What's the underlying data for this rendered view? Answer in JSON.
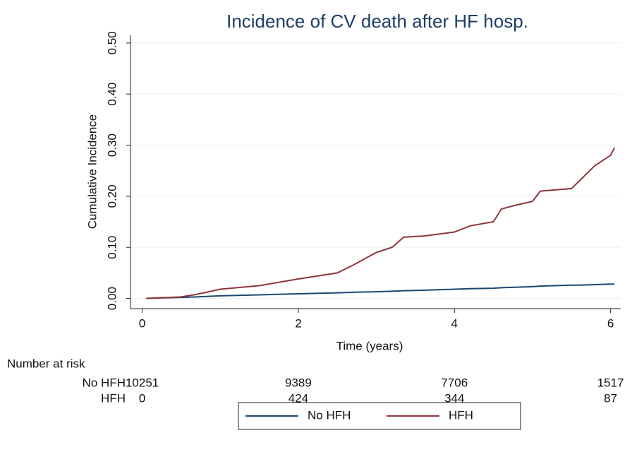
{
  "chart_data": {
    "type": "line",
    "title": "Incidence of CV death after HF hosp.",
    "xlabel": "Time (years)",
    "ylabel": "Cumulative Incidence",
    "x": [
      0.05,
      0.5,
      0.7,
      1.0,
      1.5,
      2.0,
      2.5,
      2.7,
      3.0,
      3.2,
      3.35,
      3.6,
      4.0,
      4.2,
      4.5,
      4.6,
      4.8,
      5.0,
      5.1,
      5.5,
      5.6,
      5.8,
      6.0,
      6.05
    ],
    "series": [
      {
        "name": "No HFH",
        "color": "#1a476f",
        "values": [
          0,
          0.002,
          0.003,
          0.005,
          0.007,
          0.009,
          0.011,
          0.012,
          0.013,
          0.014,
          0.015,
          0.016,
          0.018,
          0.019,
          0.02,
          0.021,
          0.022,
          0.023,
          0.024,
          0.026,
          0.026,
          0.027,
          0.028,
          0.028
        ]
      },
      {
        "name": "HFH",
        "color": "#90353b",
        "values": [
          0,
          0.003,
          0.008,
          0.018,
          0.025,
          0.038,
          0.05,
          0.065,
          0.09,
          0.1,
          0.12,
          0.122,
          0.13,
          0.142,
          0.15,
          0.175,
          0.183,
          0.19,
          0.21,
          0.215,
          0.23,
          0.26,
          0.28,
          0.295
        ]
      }
    ],
    "xlim": [
      -0.15,
      6.13
    ],
    "ylim": [
      -0.02,
      0.515
    ],
    "xticks": [
      0,
      2,
      4,
      6
    ],
    "yticks": [
      {
        "value": 0,
        "label": "0.00"
      },
      {
        "value": 0.1,
        "label": "0.10"
      },
      {
        "value": 0.2,
        "label": "0.20"
      },
      {
        "value": 0.3,
        "label": "0.30"
      },
      {
        "value": 0.4,
        "label": "0.40"
      },
      {
        "value": 0.5,
        "label": "0.50"
      }
    ],
    "grid": true,
    "legend": "bottom",
    "risk_table": {
      "title": "Number at risk",
      "rows": [
        {
          "name": "No HFH",
          "values": [
            10251,
            9389,
            7706,
            1517
          ]
        },
        {
          "name": "HFH",
          "values": [
            0,
            424,
            344,
            87
          ]
        }
      ]
    }
  }
}
